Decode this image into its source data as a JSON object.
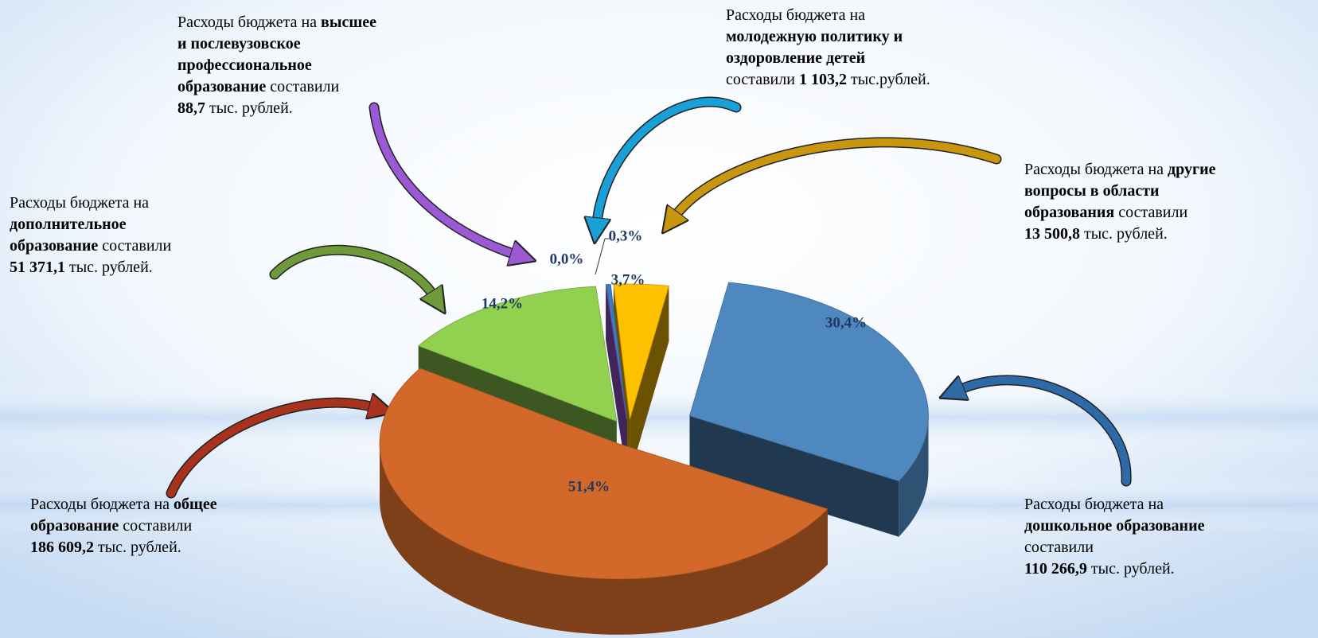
{
  "chart_data": {
    "type": "pie",
    "values": [
      0.0,
      0.3,
      3.7,
      30.4,
      51.4,
      14.2
    ],
    "value_labels": [
      "0,0%",
      "0,3%",
      "3,7%",
      "30,4%",
      "51,4%",
      "14,2%"
    ],
    "colors": [
      "#9b59d6",
      "#3a7dc0",
      "#ffc000",
      "#4f88bf",
      "#d2692a",
      "#92d050"
    ],
    "annotations": [
      {
        "lines": [
          [
            {
              "text": "Расходы бюджета на ",
              "bold": false
            },
            {
              "text": "высшее",
              "bold": true
            }
          ],
          [
            {
              "text": "и послевузовское",
              "bold": true
            }
          ],
          [
            {
              "text": "профессиональное",
              "bold": true
            }
          ],
          [
            {
              "text": "образование",
              "bold": true
            },
            {
              "text": " составили",
              "bold": false
            }
          ],
          [
            {
              "text": "88,7",
              "bold": true
            },
            {
              "text": " тыс. рублей.",
              "bold": false
            }
          ]
        ]
      },
      {
        "lines": [
          [
            {
              "text": "Расходы бюджета на",
              "bold": false
            }
          ],
          [
            {
              "text": "молодежную политику и",
              "bold": true
            }
          ],
          [
            {
              "text": "оздоровление детей",
              "bold": true
            }
          ],
          [
            {
              "text": "составили ",
              "bold": false
            },
            {
              "text": "1 103,2",
              "bold": true
            },
            {
              "text": " тыс.рублей.",
              "bold": false
            }
          ]
        ]
      },
      {
        "lines": [
          [
            {
              "text": "Расходы бюджета на ",
              "bold": false
            },
            {
              "text": "другие",
              "bold": true
            }
          ],
          [
            {
              "text": "вопросы в области",
              "bold": true
            }
          ],
          [
            {
              "text": "образования",
              "bold": true
            },
            {
              "text": " составили",
              "bold": false
            }
          ],
          [
            {
              "text": "13 500,8",
              "bold": true
            },
            {
              "text": " тыс. рублей.",
              "bold": false
            }
          ]
        ]
      },
      {
        "lines": [
          [
            {
              "text": "Расходы бюджета на",
              "bold": false
            }
          ],
          [
            {
              "text": "дополнительное",
              "bold": true
            }
          ],
          [
            {
              "text": "образование",
              "bold": true
            },
            {
              "text": " составили",
              "bold": false
            }
          ],
          [
            {
              "text": "51 371,1",
              "bold": true
            },
            {
              "text": " тыс. рублей.",
              "bold": false
            }
          ]
        ]
      },
      {
        "lines": [
          [
            {
              "text": "Расходы бюджета на ",
              "bold": false
            },
            {
              "text": "общее",
              "bold": true
            }
          ],
          [
            {
              "text": "образование",
              "bold": true
            },
            {
              "text": " составили",
              "bold": false
            }
          ],
          [
            {
              "text": "186 609,2",
              "bold": true
            },
            {
              "text": " тыс. рублей.",
              "bold": false
            }
          ]
        ]
      },
      {
        "lines": [
          [
            {
              "text": "Расходы бюджета на",
              "bold": false
            }
          ],
          [
            {
              "text": "дошкольное образование",
              "bold": true
            }
          ],
          [
            {
              "text": "составили",
              "bold": false
            }
          ],
          [
            {
              "text": "110 266,9",
              "bold": true
            },
            {
              "text": " тыс. рублей.",
              "bold": false
            }
          ]
        ]
      }
    ]
  }
}
